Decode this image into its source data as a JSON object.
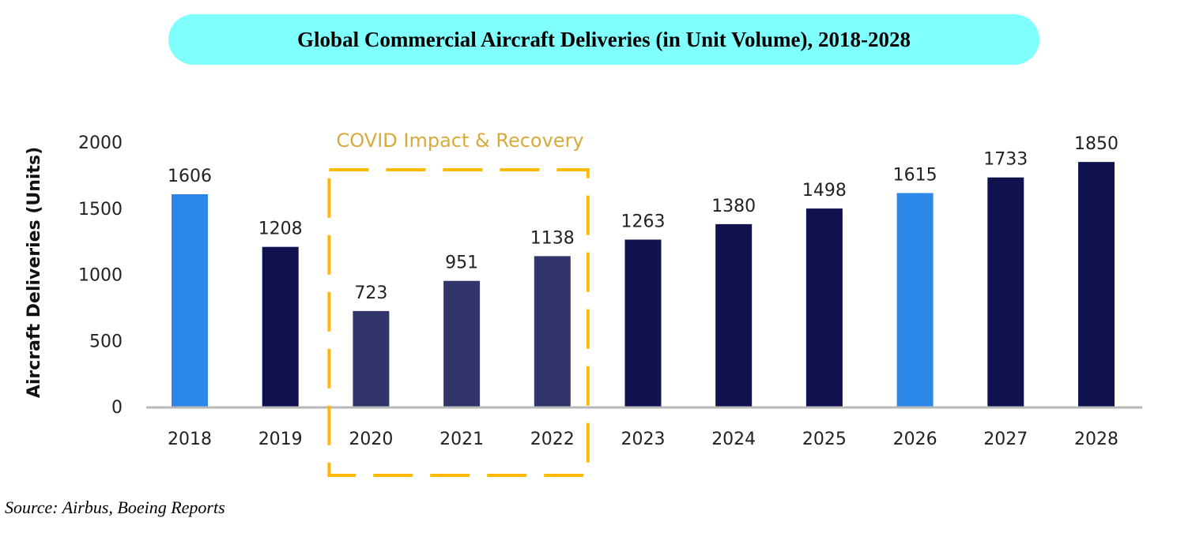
{
  "chart_data": {
    "type": "bar",
    "title": "Global Commercial Aircraft Deliveries (in Unit Volume), 2018-2028",
    "xlabel": "",
    "ylabel": "Aircraft Deliveries (Units)",
    "ylim": [
      0,
      2000
    ],
    "yticks": [
      0,
      500,
      1000,
      1500,
      2000
    ],
    "grid": false,
    "categories": [
      "2018",
      "2019",
      "2020",
      "2021",
      "2022",
      "2023",
      "2024",
      "2025",
      "2026",
      "2027",
      "2028"
    ],
    "values": [
      1606,
      1208,
      723,
      951,
      1138,
      1263,
      1380,
      1498,
      1615,
      1733,
      1850
    ],
    "bar_colors": [
      "#2b87e8",
      "#10114f",
      "#32356b",
      "#32356b",
      "#32356b",
      "#10114f",
      "#10114f",
      "#10114f",
      "#2b87e8",
      "#10114f",
      "#10114f"
    ],
    "annotation": {
      "text": "COVID Impact & Recovery",
      "range": [
        "2020",
        "2022"
      ],
      "color": "#ffba00",
      "text_color": "#d8aa3c"
    }
  },
  "source": "Source: Airbus, Boeing Reports"
}
